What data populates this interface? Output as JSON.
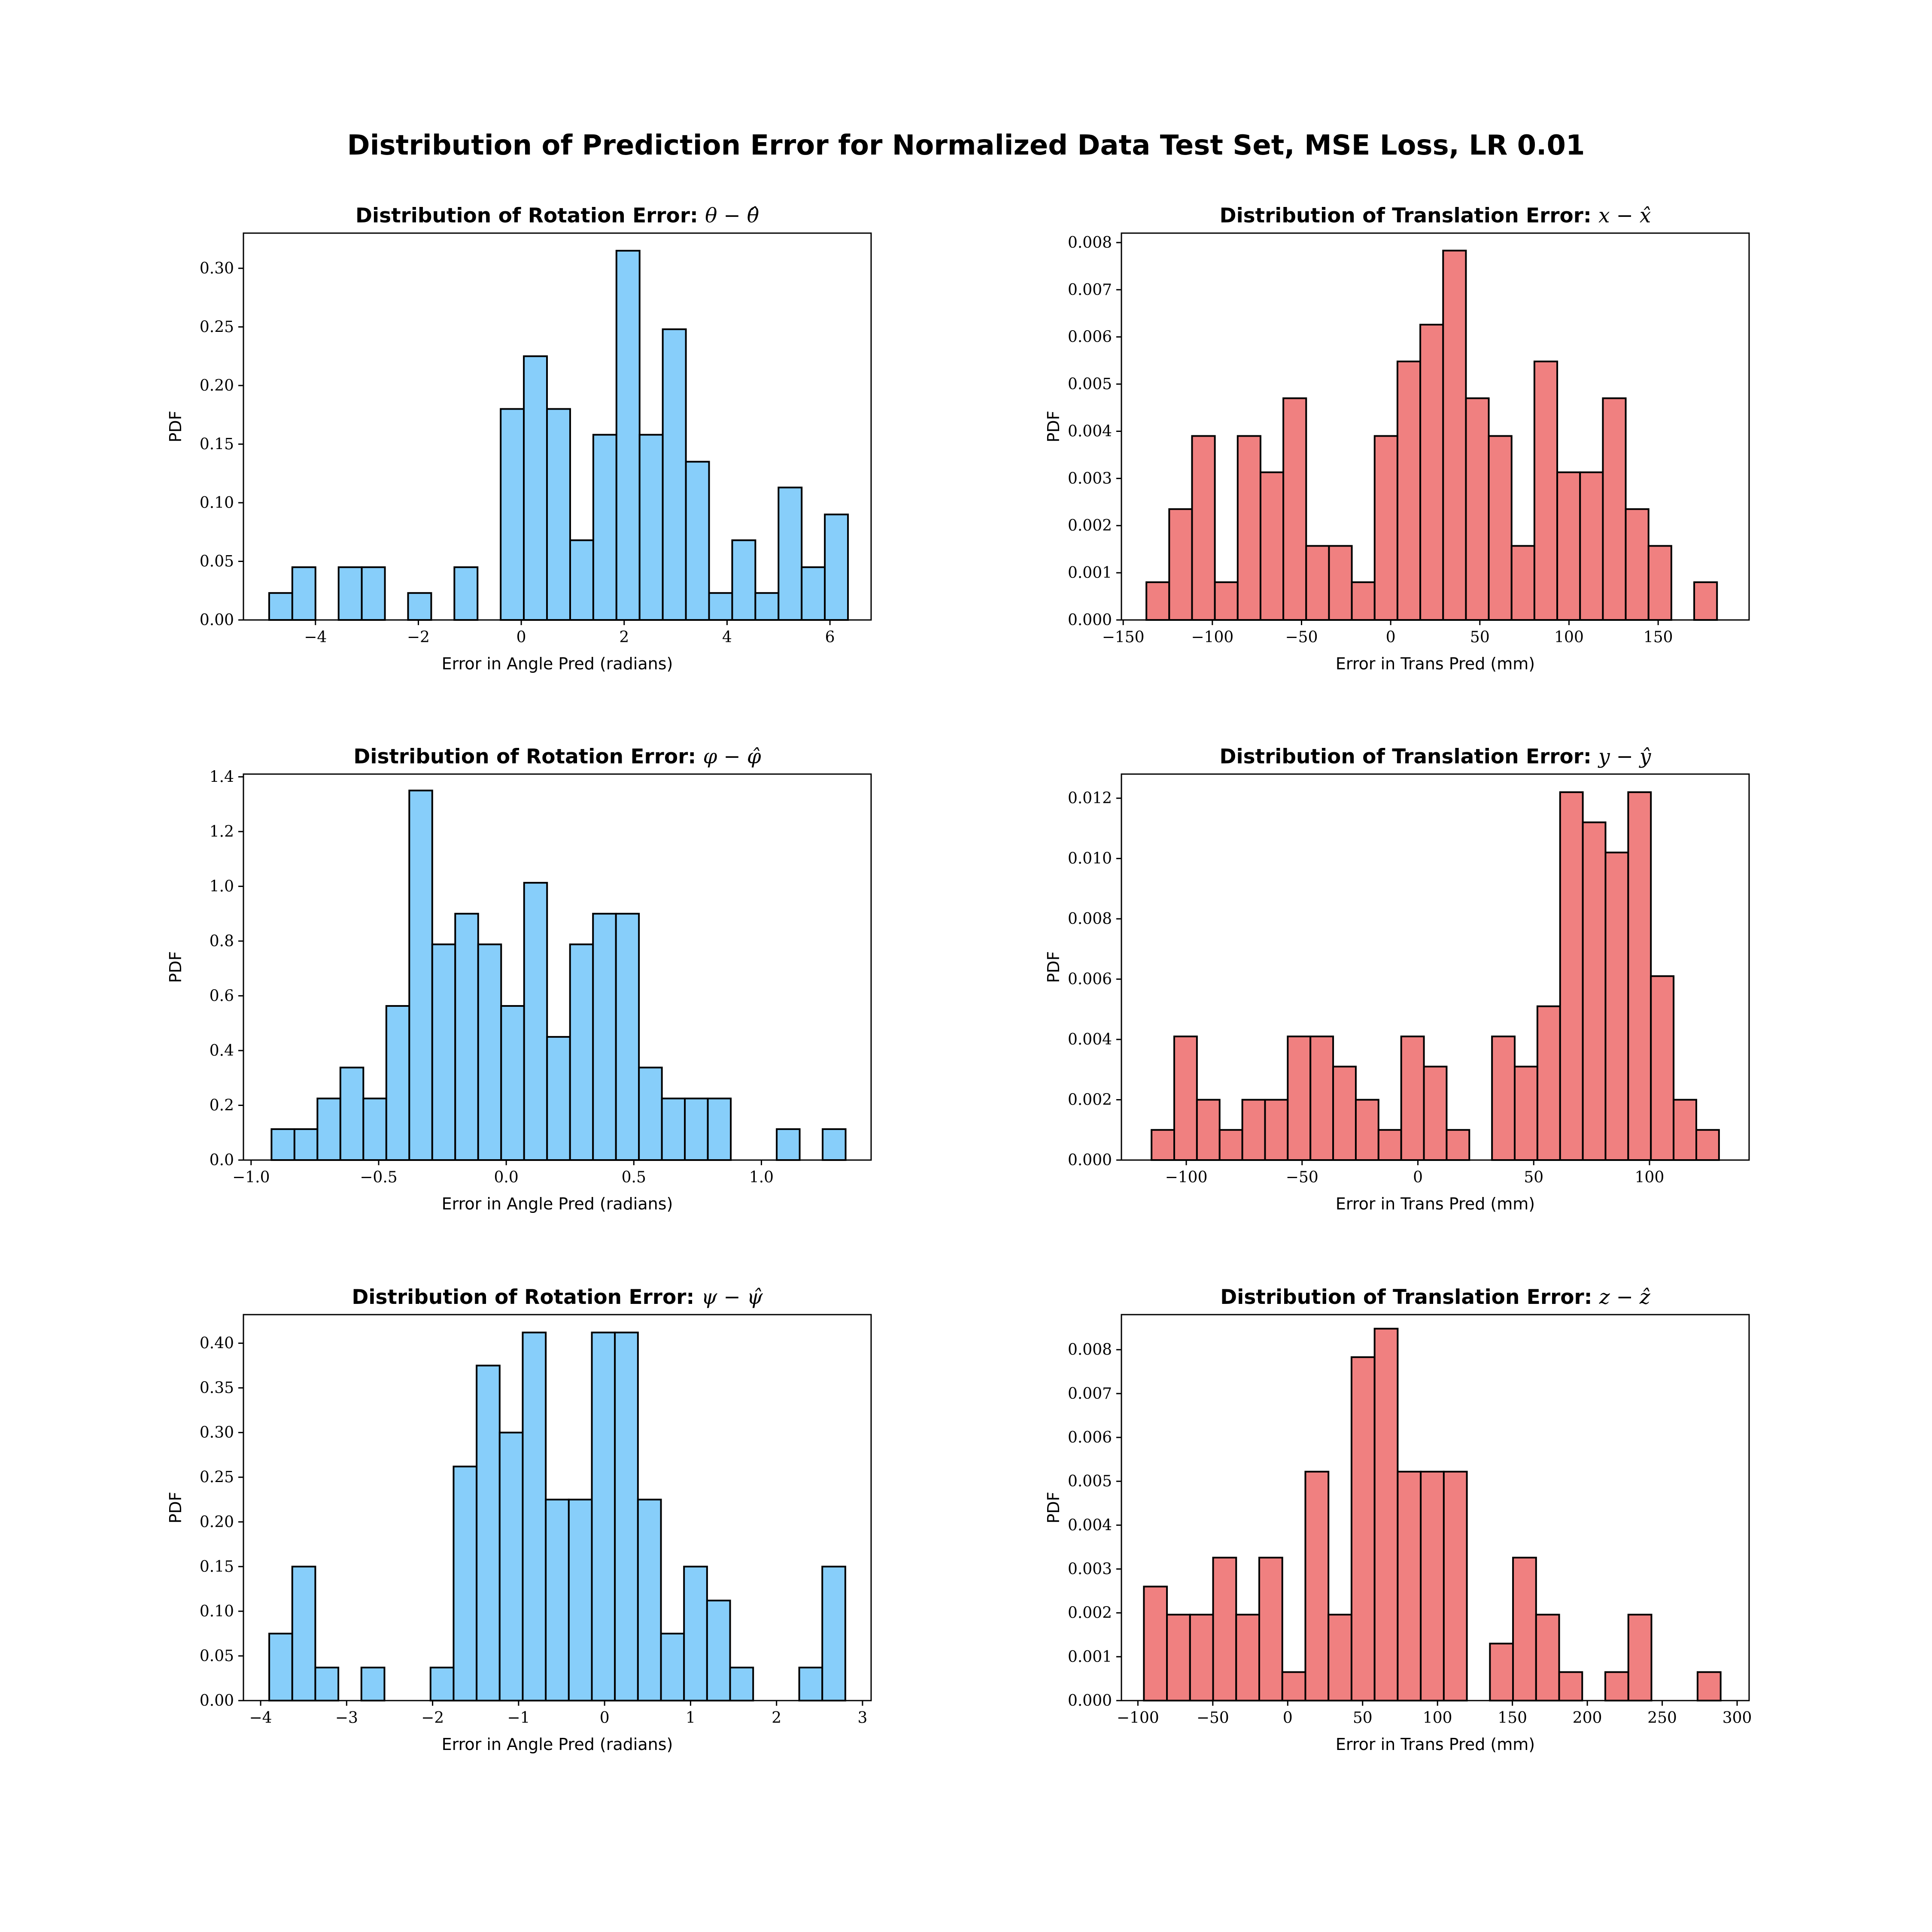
{
  "suptitle": "Distribution of Prediction Error for Normalized Data Test Set, MSE Loss, LR 0.01",
  "colors": {
    "rotation": "#87cefa",
    "translation": "#f08080",
    "edge": "#000000"
  },
  "chart_data": [
    {
      "type": "bar",
      "title_text": "Distribution of Rotation Error: ",
      "title_math": "θ − θ̂",
      "xlabel": "Error in Angle Pred (radians)",
      "ylabel": "PDF",
      "color": "rotation",
      "xlim": [
        -5.4,
        6.8
      ],
      "ylim": [
        0,
        0.33
      ],
      "xticks": [
        -4,
        -2,
        0,
        2,
        4,
        6
      ],
      "yticks": [
        0.0,
        0.05,
        0.1,
        0.15,
        0.2,
        0.25,
        0.3
      ],
      "x_decimals": 0,
      "y_decimals": 2,
      "bin_start": -4.9,
      "bin_width": 0.45,
      "values": [
        0.023,
        0.045,
        0,
        0.045,
        0.045,
        0,
        0.023,
        0,
        0.045,
        0,
        0.18,
        0.225,
        0.18,
        0.068,
        0.158,
        0.315,
        0.158,
        0.248,
        0.135,
        0.023,
        0.068,
        0.023,
        0.113,
        0.045,
        0.09
      ]
    },
    {
      "type": "bar",
      "title_text": "Distribution of Translation Error: ",
      "title_math": "x − x̂",
      "xlabel": "Error in Trans Pred (mm)",
      "ylabel": "PDF",
      "color": "translation",
      "xlim": [
        -151,
        201
      ],
      "ylim": [
        0,
        0.0082
      ],
      "xticks": [
        -150,
        -100,
        -50,
        0,
        50,
        100,
        150
      ],
      "yticks": [
        0.0,
        0.001,
        0.002,
        0.003,
        0.004,
        0.005,
        0.006,
        0.007,
        0.008
      ],
      "x_decimals": 0,
      "y_decimals": 3,
      "bin_start": -137,
      "bin_width": 12.8,
      "values": [
        0.0008,
        0.00235,
        0.0039,
        0.0008,
        0.0039,
        0.00313,
        0.0047,
        0.00157,
        0.00157,
        0.0008,
        0.0039,
        0.00548,
        0.00626,
        0.00783,
        0.0047,
        0.0039,
        0.00157,
        0.00548,
        0.00313,
        0.00313,
        0.0047,
        0.00235,
        0.00157,
        0,
        0.0008
      ]
    },
    {
      "type": "bar",
      "title_text": "Distribution of Rotation Error: ",
      "title_math": "φ − φ̂",
      "xlabel": "Error in Angle Pred (radians)",
      "ylabel": "PDF",
      "color": "rotation",
      "xlim": [
        -1.03,
        1.43
      ],
      "ylim": [
        0,
        1.41
      ],
      "xticks": [
        -1.0,
        -0.5,
        0.0,
        0.5,
        1.0
      ],
      "yticks": [
        0.0,
        0.2,
        0.4,
        0.6,
        0.8,
        1.0,
        1.2,
        1.4
      ],
      "x_decimals": 1,
      "y_decimals": 1,
      "bin_start": -0.92,
      "bin_width": 0.09,
      "values": [
        0.113,
        0.113,
        0.225,
        0.338,
        0.225,
        0.563,
        1.35,
        0.788,
        0.9,
        0.788,
        0.563,
        1.013,
        0.45,
        0.788,
        0.9,
        0.9,
        0.338,
        0.225,
        0.225,
        0.225,
        0,
        0,
        0.113,
        0,
        0.113
      ]
    },
    {
      "type": "bar",
      "title_text": "Distribution of Translation Error: ",
      "title_math": "y − ŷ",
      "xlabel": "Error in Trans Pred (mm)",
      "ylabel": "PDF",
      "color": "translation",
      "xlim": [
        -128,
        143
      ],
      "ylim": [
        0,
        0.0128
      ],
      "xticks": [
        -100,
        -50,
        0,
        50,
        100
      ],
      "yticks": [
        0.0,
        0.002,
        0.004,
        0.006,
        0.008,
        0.01,
        0.012
      ],
      "x_decimals": 0,
      "y_decimals": 3,
      "bin_start": -115,
      "bin_width": 9.8,
      "values": [
        0.001,
        0.0041,
        0.002,
        0.001,
        0.002,
        0.002,
        0.0041,
        0.0041,
        0.0031,
        0.002,
        0.001,
        0.0041,
        0.0031,
        0.001,
        0,
        0.0041,
        0.0031,
        0.0051,
        0.0122,
        0.0112,
        0.0102,
        0.0122,
        0.0061,
        0.002,
        0.001
      ]
    },
    {
      "type": "bar",
      "title_text": "Distribution of Rotation Error: ",
      "title_math": "ψ − ψ̂",
      "xlabel": "Error in Angle Pred (radians)",
      "ylabel": "PDF",
      "color": "rotation",
      "xlim": [
        -4.2,
        3.1
      ],
      "ylim": [
        0,
        0.432
      ],
      "xticks": [
        -4,
        -3,
        -2,
        -1,
        0,
        1,
        2,
        3
      ],
      "yticks": [
        0.0,
        0.05,
        0.1,
        0.15,
        0.2,
        0.25,
        0.3,
        0.35,
        0.4
      ],
      "x_decimals": 0,
      "y_decimals": 2,
      "bin_start": -3.9,
      "bin_width": 0.268,
      "values": [
        0.075,
        0.15,
        0.037,
        0,
        0.037,
        0,
        0,
        0.037,
        0.262,
        0.375,
        0.3,
        0.412,
        0.225,
        0.225,
        0.412,
        0.412,
        0.225,
        0.075,
        0.15,
        0.112,
        0.037,
        0,
        0,
        0.037,
        0.15
      ]
    },
    {
      "type": "bar",
      "title_text": "Distribution of Translation Error: ",
      "title_math": "z − ẑ",
      "xlabel": "Error in Trans Pred (mm)",
      "ylabel": "PDF",
      "color": "translation",
      "xlim": [
        -111,
        308
      ],
      "ylim": [
        0,
        0.0088
      ],
      "xticks": [
        -100,
        -50,
        0,
        50,
        100,
        150,
        200,
        250,
        300
      ],
      "yticks": [
        0.0,
        0.001,
        0.002,
        0.003,
        0.004,
        0.005,
        0.006,
        0.007,
        0.008
      ],
      "x_decimals": 0,
      "y_decimals": 3,
      "bin_start": -96,
      "bin_width": 15.4,
      "values": [
        0.0026,
        0.00196,
        0.00196,
        0.00326,
        0.00196,
        0.00326,
        0.00065,
        0.00522,
        0.00196,
        0.00783,
        0.00848,
        0.00522,
        0.00522,
        0.00522,
        0,
        0.0013,
        0.00326,
        0.00196,
        0.00065,
        0,
        0.00065,
        0.00196,
        0,
        0,
        0.00065
      ]
    }
  ]
}
